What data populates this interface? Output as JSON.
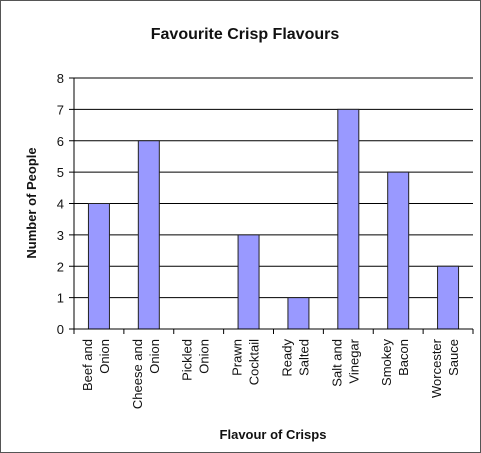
{
  "chart_data": {
    "type": "bar",
    "title": "Favourite Crisp Flavours",
    "xlabel": "Flavour of Crisps",
    "ylabel": "Number of People",
    "ylim": [
      0,
      8
    ],
    "yticks": [
      "0",
      "1",
      "2",
      "3",
      "4",
      "5",
      "6",
      "7",
      "8"
    ],
    "grid": true,
    "categories": [
      [
        "Beef and",
        "Onion"
      ],
      [
        "Cheese and",
        "Onion"
      ],
      [
        "Pickled",
        "Onion"
      ],
      [
        "Prawn",
        "Cocktail"
      ],
      [
        "Ready",
        "Salted"
      ],
      [
        "Salt and",
        "Vinegar"
      ],
      [
        "Smokey",
        "Bacon"
      ],
      [
        "Worcester",
        "Sauce"
      ]
    ],
    "values": [
      4,
      6,
      0,
      3,
      1,
      7,
      5,
      2
    ],
    "colors": {
      "bar_fill": "#9999ff",
      "bar_stroke": "#222222",
      "gridline": "#000000",
      "axis": "#000000"
    }
  }
}
